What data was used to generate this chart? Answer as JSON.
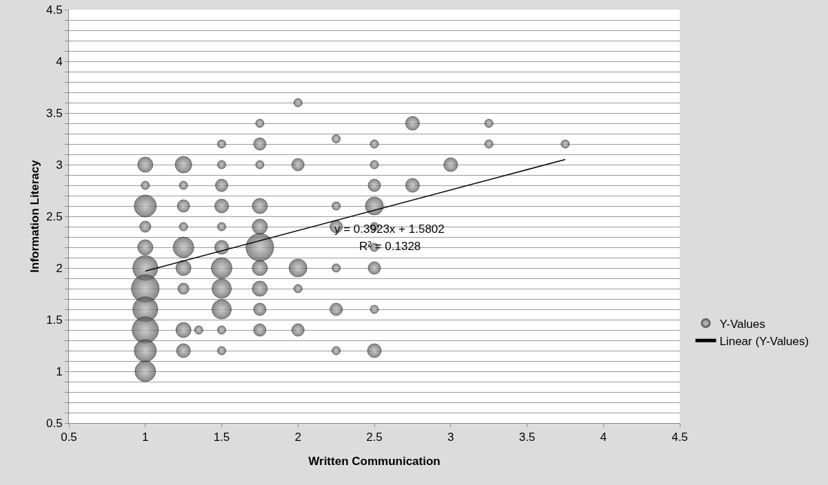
{
  "chart_data": {
    "type": "bubble",
    "xlabel": "Written Communication",
    "ylabel": "Information Literacy",
    "xlim": [
      0.5,
      4.5
    ],
    "xticks": [
      0.5,
      1,
      1.5,
      2,
      2.5,
      3,
      3.5,
      4,
      4.5
    ],
    "ylim": [
      0.5,
      4.5
    ],
    "yticks": [
      0.5,
      {
        "value": 0.6,
        "label": null
      },
      {
        "value": 0.7,
        "label": null
      },
      {
        "value": 0.8,
        "label": null
      },
      {
        "value": 0.9,
        "label": null
      },
      1,
      {
        "value": 1.1,
        "label": null
      },
      {
        "value": 1.2,
        "label": null
      },
      {
        "value": 1.3,
        "label": null
      },
      {
        "value": 1.4,
        "label": null
      },
      1.5,
      {
        "value": 1.6,
        "label": null
      },
      {
        "value": 1.7,
        "label": null
      },
      {
        "value": 1.8,
        "label": null
      },
      {
        "value": 1.9,
        "label": null
      },
      2,
      {
        "value": 2.1,
        "label": null
      },
      {
        "value": 2.2,
        "label": null
      },
      {
        "value": 2.3,
        "label": null
      },
      {
        "value": 2.4,
        "label": null
      },
      2.5,
      {
        "value": 2.6,
        "label": null
      },
      {
        "value": 2.7,
        "label": null
      },
      {
        "value": 2.8,
        "label": null
      },
      {
        "value": 2.9,
        "label": null
      },
      3,
      {
        "value": 3.1,
        "label": null
      },
      {
        "value": 3.2,
        "label": null
      },
      {
        "value": 3.3,
        "label": null
      },
      {
        "value": 3.4,
        "label": null
      },
      3.5,
      {
        "value": 3.6,
        "label": null
      },
      {
        "value": 3.7,
        "label": null
      },
      {
        "value": 3.8,
        "label": null
      },
      {
        "value": 3.9,
        "label": null
      },
      4,
      {
        "value": 4.1,
        "label": null
      },
      {
        "value": 4.2,
        "label": null
      },
      {
        "value": 4.3,
        "label": null
      },
      {
        "value": 4.4,
        "label": null
      },
      4.5
    ],
    "grid": "y",
    "legend": "right",
    "series": [
      {
        "name": "Y-Values",
        "color": "#555555",
        "x": [
          1,
          1,
          1,
          1,
          1,
          1,
          1,
          1,
          1,
          1,
          1,
          1.25,
          1.25,
          1.25,
          1.25,
          1.25,
          1.25,
          1.25,
          1.25,
          1.25,
          1.35,
          1.5,
          1.5,
          1.5,
          1.5,
          1.5,
          1.5,
          1.5,
          1.5,
          1.5,
          1.5,
          1.5,
          1.75,
          1.75,
          1.75,
          1.75,
          1.75,
          1.75,
          1.75,
          1.75,
          1.75,
          1.75,
          2,
          2,
          2,
          2,
          2,
          2.25,
          2.25,
          2.25,
          2.25,
          2.25,
          2.25,
          2.5,
          2.5,
          2.5,
          2.5,
          2.5,
          2.5,
          2.5,
          2.5,
          2.5,
          2.75,
          2.75,
          3,
          3.25,
          3.25,
          3.75
        ],
        "values": [
          3,
          2.8,
          2.6,
          2.4,
          2.2,
          2,
          1.8,
          1.6,
          1.4,
          1.2,
          1,
          3,
          2.8,
          2.6,
          2.4,
          2.2,
          2,
          1.8,
          1.4,
          1.2,
          1.4,
          3.2,
          3,
          2.8,
          2.6,
          2.4,
          2.2,
          2,
          1.8,
          1.6,
          1.4,
          1.2,
          3.4,
          3.2,
          3,
          2.6,
          2.4,
          2.2,
          2,
          1.8,
          1.6,
          1.4,
          3.6,
          3,
          2,
          1.8,
          1.4,
          3.25,
          2.6,
          2.4,
          2,
          1.6,
          1.2,
          3.2,
          3,
          2.8,
          2.6,
          2.4,
          2.2,
          2,
          1.6,
          1.2,
          3.4,
          2.8,
          3,
          3.4,
          3.2,
          3.2
        ],
        "sizes": [
          0.3,
          0.09,
          0.64,
          0.16,
          0.3,
          0.81,
          1,
          0.81,
          0.9,
          0.64,
          0.56,
          0.36,
          0.09,
          0.2,
          0.09,
          0.56,
          0.3,
          0.16,
          0.3,
          0.25,
          0.09,
          0.09,
          0.09,
          0.2,
          0.25,
          0.09,
          0.25,
          0.56,
          0.49,
          0.49,
          0.09,
          0.09,
          0.09,
          0.2,
          0.09,
          0.3,
          0.3,
          1,
          0.3,
          0.3,
          0.2,
          0.2,
          0.09,
          0.2,
          0.42,
          0.09,
          0.2,
          0.09,
          0.09,
          0.2,
          0.09,
          0.2,
          0.09,
          0.09,
          0.09,
          0.2,
          0.42,
          0.09,
          0.09,
          0.2,
          0.09,
          0.25,
          0.25,
          0.25,
          0.25,
          0.09,
          0.09,
          0.09
        ]
      },
      {
        "name": "Linear (Y-Values)",
        "type": "line",
        "color": "#000000",
        "line_style": "solid",
        "x": [
          1,
          3.75
        ],
        "values": [
          1.97,
          3.05
        ]
      }
    ],
    "annotations": [
      "y = 0.3923x + 1.5802",
      "R² = 0.1328"
    ]
  }
}
